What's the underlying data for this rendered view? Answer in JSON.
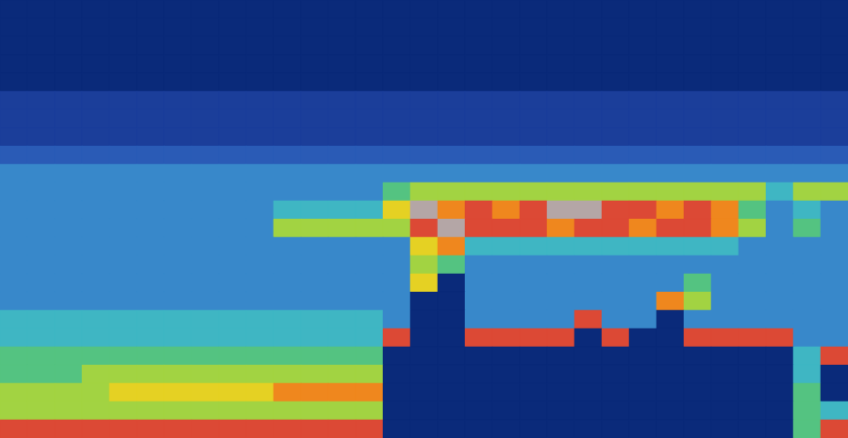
{
  "chart_data": {
    "type": "heatmap",
    "tick_labels": false,
    "zlim": [
      0,
      10
    ],
    "cells": [
      [
        0,
        0,
        0,
        0,
        0,
        0,
        0,
        0,
        0,
        0,
        0,
        0,
        0,
        0,
        0,
        0,
        0,
        0,
        0,
        0,
        0,
        0,
        0,
        0,
        0,
        0,
        0,
        0,
        0,
        0,
        0
      ],
      [
        0,
        0,
        0,
        0,
        0,
        0,
        0,
        0,
        0,
        0,
        0,
        0,
        0,
        0,
        0,
        0,
        0,
        0,
        0,
        0,
        0,
        0,
        0,
        0,
        0,
        0,
        0,
        0,
        0,
        0,
        0
      ],
      [
        0,
        0,
        0,
        0,
        0,
        0,
        0,
        0,
        0,
        0,
        0,
        0,
        0,
        0,
        0,
        0,
        0,
        0,
        0,
        0,
        0,
        0,
        0,
        0,
        0,
        0,
        0,
        0,
        0,
        0,
        0
      ],
      [
        0,
        0,
        0,
        0,
        0,
        0,
        0,
        0,
        0,
        0,
        0,
        0,
        0,
        0,
        0,
        0,
        0,
        0,
        0,
        0,
        0,
        0,
        0,
        0,
        0,
        0,
        0,
        0,
        0,
        0,
        0
      ],
      [
        0,
        0,
        0,
        0,
        0,
        0,
        0,
        0,
        0,
        0,
        0,
        0,
        0,
        0,
        0,
        0,
        0,
        0,
        0,
        0,
        0,
        0,
        0,
        0,
        0,
        0,
        0,
        0,
        0,
        0,
        0
      ],
      [
        1,
        1,
        1,
        1,
        1,
        1,
        1,
        1,
        1,
        1,
        1,
        1,
        1,
        1,
        1,
        1,
        1,
        1,
        1,
        1,
        1,
        1,
        1,
        1,
        1,
        1,
        1,
        1,
        1,
        1,
        1
      ],
      [
        1,
        1,
        1,
        1,
        1,
        1,
        1,
        1,
        1,
        1,
        1,
        1,
        1,
        1,
        1,
        1,
        1,
        1,
        1,
        1,
        1,
        1,
        1,
        1,
        1,
        1,
        1,
        1,
        1,
        1,
        1
      ],
      [
        1,
        1,
        1,
        1,
        1,
        1,
        1,
        1,
        1,
        1,
        1,
        1,
        1,
        1,
        1,
        1,
        1,
        1,
        1,
        1,
        1,
        1,
        1,
        1,
        1,
        1,
        1,
        1,
        1,
        1,
        1
      ],
      [
        2,
        2,
        2,
        2,
        2,
        2,
        2,
        2,
        2,
        2,
        2,
        2,
        2,
        2,
        2,
        2,
        2,
        2,
        2,
        2,
        2,
        2,
        2,
        2,
        2,
        2,
        2,
        2,
        2,
        2,
        2
      ],
      [
        3,
        3,
        3,
        3,
        3,
        3,
        3,
        3,
        3,
        3,
        3,
        3,
        3,
        3,
        3,
        3,
        3,
        3,
        3,
        3,
        3,
        3,
        3,
        3,
        3,
        3,
        3,
        3,
        3,
        3,
        3
      ],
      [
        3,
        3,
        3,
        3,
        3,
        3,
        3,
        3,
        3,
        3,
        3,
        3,
        3,
        3,
        5,
        6,
        6,
        6,
        6,
        6,
        6,
        6,
        6,
        6,
        6,
        6,
        6,
        6,
        4,
        6,
        6
      ],
      [
        3,
        3,
        3,
        3,
        3,
        3,
        3,
        3,
        3,
        3,
        4,
        4,
        4,
        4,
        7,
        10,
        8,
        9,
        8,
        9,
        10,
        10,
        9,
        9,
        8,
        9,
        8,
        5,
        3,
        4,
        3
      ],
      [
        3,
        3,
        3,
        3,
        3,
        3,
        3,
        3,
        3,
        3,
        6,
        6,
        6,
        6,
        6,
        9,
        10,
        9,
        9,
        9,
        8,
        9,
        9,
        8,
        9,
        9,
        8,
        6,
        3,
        5,
        3
      ],
      [
        3,
        3,
        3,
        3,
        3,
        3,
        3,
        3,
        3,
        3,
        3,
        3,
        3,
        3,
        3,
        7,
        8,
        4,
        4,
        4,
        4,
        4,
        4,
        4,
        4,
        4,
        4,
        3,
        3,
        3,
        3
      ],
      [
        3,
        3,
        3,
        3,
        3,
        3,
        3,
        3,
        3,
        3,
        3,
        3,
        3,
        3,
        3,
        6,
        5,
        3,
        3,
        3,
        3,
        3,
        3,
        3,
        3,
        3,
        3,
        3,
        3,
        3,
        3
      ],
      [
        3,
        3,
        3,
        3,
        3,
        3,
        3,
        3,
        3,
        3,
        3,
        3,
        3,
        3,
        3,
        7,
        0,
        3,
        3,
        3,
        3,
        3,
        3,
        3,
        3,
        5,
        3,
        3,
        3,
        3,
        3
      ],
      [
        3,
        3,
        3,
        3,
        3,
        3,
        3,
        3,
        3,
        3,
        3,
        3,
        3,
        3,
        3,
        0,
        0,
        3,
        3,
        3,
        3,
        3,
        3,
        3,
        8,
        6,
        3,
        3,
        3,
        3,
        3
      ],
      [
        4,
        4,
        4,
        4,
        4,
        4,
        4,
        4,
        4,
        4,
        4,
        4,
        4,
        4,
        3,
        0,
        0,
        3,
        3,
        3,
        3,
        9,
        3,
        3,
        0,
        3,
        3,
        3,
        3,
        3,
        3
      ],
      [
        4,
        4,
        4,
        4,
        4,
        4,
        4,
        4,
        4,
        4,
        4,
        4,
        4,
        4,
        9,
        0,
        0,
        9,
        9,
        9,
        9,
        0,
        9,
        0,
        0,
        9,
        9,
        9,
        9,
        3,
        3
      ],
      [
        5,
        5,
        5,
        5,
        5,
        5,
        5,
        5,
        5,
        5,
        5,
        5,
        5,
        5,
        0,
        0,
        0,
        0,
        0,
        0,
        0,
        0,
        0,
        0,
        0,
        0,
        0,
        0,
        0,
        4,
        9
      ],
      [
        5,
        5,
        5,
        6,
        6,
        6,
        6,
        6,
        6,
        6,
        6,
        6,
        6,
        6,
        0,
        0,
        0,
        0,
        0,
        0,
        0,
        0,
        0,
        0,
        0,
        0,
        0,
        0,
        0,
        4,
        0
      ],
      [
        6,
        6,
        6,
        6,
        7,
        7,
        7,
        7,
        7,
        7,
        8,
        8,
        8,
        8,
        0,
        0,
        0,
        0,
        0,
        0,
        0,
        0,
        0,
        0,
        0,
        0,
        0,
        0,
        0,
        5,
        0
      ],
      [
        6,
        6,
        6,
        6,
        6,
        6,
        6,
        6,
        6,
        6,
        6,
        6,
        6,
        6,
        0,
        0,
        0,
        0,
        0,
        0,
        0,
        0,
        0,
        0,
        0,
        0,
        0,
        0,
        0,
        5,
        4
      ],
      [
        9,
        9,
        9,
        9,
        9,
        9,
        9,
        9,
        9,
        9,
        9,
        9,
        9,
        9,
        0,
        0,
        0,
        0,
        0,
        0,
        0,
        0,
        0,
        0,
        0,
        0,
        0,
        0,
        0,
        5,
        9
      ]
    ]
  }
}
